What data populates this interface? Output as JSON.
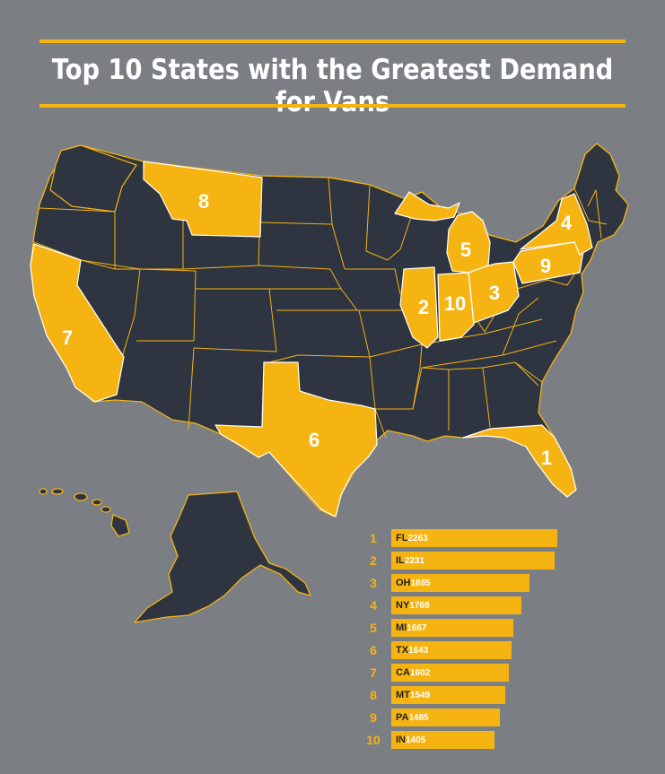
{
  "title": "Top 10 States with the Greatest Demand for Vans",
  "colors": {
    "background": "#7b7f84",
    "highlight": "#f5b412",
    "state_dark": "#2e3440",
    "border": "#f5b412"
  },
  "map_labels": [
    {
      "rank": "1",
      "state": "FL"
    },
    {
      "rank": "2",
      "state": "IL"
    },
    {
      "rank": "3",
      "state": "OH"
    },
    {
      "rank": "4",
      "state": "NY"
    },
    {
      "rank": "5",
      "state": "MI"
    },
    {
      "rank": "6",
      "state": "TX"
    },
    {
      "rank": "7",
      "state": "CA"
    },
    {
      "rank": "8",
      "state": "MT"
    },
    {
      "rank": "9",
      "state": "PA"
    },
    {
      "rank": "10",
      "state": "IN"
    }
  ],
  "ranking": [
    {
      "rank": "1",
      "state": "FL",
      "value": 2263
    },
    {
      "rank": "2",
      "state": "IL",
      "value": 2231
    },
    {
      "rank": "3",
      "state": "OH",
      "value": 1885
    },
    {
      "rank": "4",
      "state": "NY",
      "value": 1768
    },
    {
      "rank": "5",
      "state": "MI",
      "value": 1667
    },
    {
      "rank": "6",
      "state": "TX",
      "value": 1643
    },
    {
      "rank": "7",
      "state": "CA",
      "value": 1602
    },
    {
      "rank": "8",
      "state": "MT",
      "value": 1549
    },
    {
      "rank": "9",
      "state": "PA",
      "value": 1485
    },
    {
      "rank": "10",
      "state": "IN",
      "value": 1405
    }
  ]
}
